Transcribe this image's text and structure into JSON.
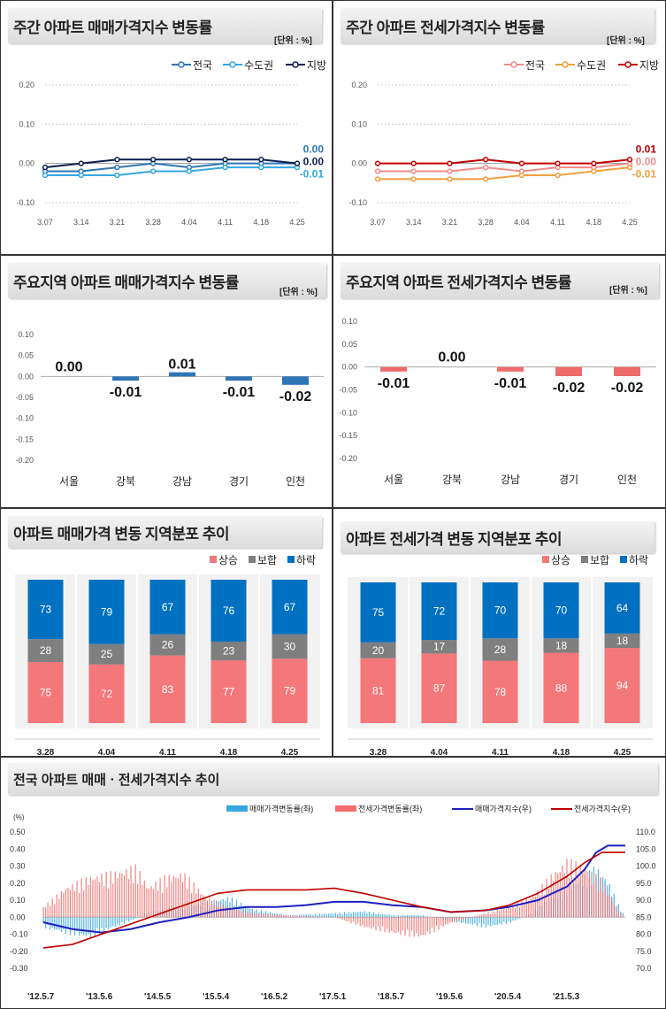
{
  "panels": {
    "weekly_sale": {
      "title": "주간 아파트 매매가격지수 변동률",
      "unit": "[단위 : %]"
    },
    "weekly_jeonse": {
      "title": "주간 아파트 전세가격지수 변동률",
      "unit": "[단위 : %]"
    },
    "region_sale": {
      "title": "주요지역 아파트 매매가격지수 변동률",
      "unit": "[단위 : %]"
    },
    "region_jeonse": {
      "title": "주요지역 아파트 전세가격지수 변동률",
      "unit": "[단위 : %]"
    },
    "dist_sale": {
      "title": "아파트 매매가격 변동 지역분포 추이"
    },
    "dist_jeonse": {
      "title": "아파트 전세가격 변동 지역분포 추이"
    },
    "long_term": {
      "title": "전국 아파트 매매ㆍ전세가격지수 추이"
    }
  },
  "chart_data": [
    {
      "id": "weekly_sale",
      "type": "line",
      "categories": [
        "3.07",
        "3.14",
        "3.21",
        "3.28",
        "4.04",
        "4.11",
        "4.18",
        "4.25"
      ],
      "ylim": [
        -0.1,
        0.2
      ],
      "yticks": [
        "0.20",
        "0.10",
        "0.00",
        "-0.10"
      ],
      "series": [
        {
          "name": "전국",
          "color": "#2e75b6",
          "values": [
            -0.02,
            -0.02,
            -0.01,
            0.0,
            -0.01,
            0.0,
            0.0,
            0.0
          ],
          "end_label": "0.00"
        },
        {
          "name": "수도권",
          "color": "#35a8e0",
          "values": [
            -0.03,
            -0.03,
            -0.03,
            -0.02,
            -0.02,
            -0.01,
            -0.01,
            -0.01
          ],
          "end_label": "-0.01"
        },
        {
          "name": "지방",
          "color": "#0b1d51",
          "values": [
            -0.01,
            0.0,
            0.01,
            0.01,
            0.01,
            0.01,
            0.01,
            0.0
          ],
          "end_label": "0.00"
        }
      ]
    },
    {
      "id": "weekly_jeonse",
      "type": "line",
      "categories": [
        "3.07",
        "3.14",
        "3.21",
        "3.28",
        "4.04",
        "4.11",
        "4.18",
        "4.25"
      ],
      "ylim": [
        -0.1,
        0.2
      ],
      "yticks": [
        "0.20",
        "0.10",
        "0.00",
        "-0.10"
      ],
      "series": [
        {
          "name": "전국",
          "color": "#f28b8b",
          "values": [
            -0.02,
            -0.02,
            -0.02,
            -0.01,
            -0.02,
            -0.01,
            -0.01,
            0.0
          ],
          "end_label": "0.00"
        },
        {
          "name": "수도권",
          "color": "#f0a040",
          "values": [
            -0.04,
            -0.04,
            -0.04,
            -0.04,
            -0.03,
            -0.03,
            -0.02,
            -0.01
          ],
          "end_label": "-0.01"
        },
        {
          "name": "지방",
          "color": "#c00000",
          "values": [
            0.0,
            0.0,
            0.0,
            0.01,
            0.0,
            0.0,
            0.0,
            0.01
          ],
          "end_label": "0.01"
        }
      ]
    },
    {
      "id": "region_sale",
      "type": "bar",
      "categories": [
        "서울",
        "강북",
        "강남",
        "경기",
        "인천"
      ],
      "values": [
        0.0,
        -0.01,
        0.01,
        -0.01,
        -0.02
      ],
      "labels": [
        "0.00",
        "-0.01",
        "0.01",
        "-0.01",
        "-0.02"
      ],
      "ylim": [
        -0.2,
        0.1
      ],
      "yticks": [
        "0.10",
        "0.05",
        "0.00",
        "-0.05",
        "-0.10",
        "-0.15",
        "-0.20"
      ],
      "color": "#2e75b6"
    },
    {
      "id": "region_jeonse",
      "type": "bar",
      "categories": [
        "서울",
        "강북",
        "강남",
        "경기",
        "인천"
      ],
      "values": [
        -0.01,
        0.0,
        -0.01,
        -0.02,
        -0.02
      ],
      "labels": [
        "-0.01",
        "0.00",
        "-0.01",
        "-0.02",
        "-0.02"
      ],
      "ylim": [
        -0.2,
        0.1
      ],
      "yticks": [
        "0.10",
        "0.05",
        "0.00",
        "-0.05",
        "-0.10",
        "-0.15",
        "-0.20"
      ],
      "color": "#ef6b6b"
    },
    {
      "id": "dist_sale",
      "type": "bar",
      "stacked": true,
      "categories": [
        "3.28",
        "4.04",
        "4.11",
        "4.18",
        "4.25"
      ],
      "series": [
        {
          "name": "상승",
          "color": "#f4777a",
          "values": [
            75,
            72,
            83,
            77,
            79
          ]
        },
        {
          "name": "보합",
          "color": "#7f7f7f",
          "values": [
            28,
            25,
            26,
            23,
            30
          ]
        },
        {
          "name": "하락",
          "color": "#0070c0",
          "values": [
            73,
            79,
            67,
            76,
            67
          ]
        }
      ]
    },
    {
      "id": "dist_jeonse",
      "type": "bar",
      "stacked": true,
      "categories": [
        "3.28",
        "4.04",
        "4.11",
        "4.18",
        "4.25"
      ],
      "series": [
        {
          "name": "상승",
          "color": "#f4777a",
          "values": [
            81,
            87,
            78,
            88,
            94
          ]
        },
        {
          "name": "보합",
          "color": "#7f7f7f",
          "values": [
            20,
            17,
            28,
            18,
            18
          ]
        },
        {
          "name": "하락",
          "color": "#0070c0",
          "values": [
            75,
            72,
            70,
            70,
            64
          ]
        }
      ]
    },
    {
      "id": "long_term",
      "type": "line",
      "y_left_label": "(%)",
      "ylim_left": [
        -0.3,
        0.5
      ],
      "ylim_right": [
        70,
        110
      ],
      "yticks_left": [
        "0.50",
        "0.40",
        "0.30",
        "0.20",
        "0.10",
        "0.00",
        "-0.10",
        "-0.20",
        "-0.30"
      ],
      "yticks_right": [
        "110.0",
        "105.0",
        "100.0",
        "95.0",
        "90.0",
        "85.0",
        "80.0",
        "75.0",
        "70.0"
      ],
      "x_ticks": [
        "'12.5.7",
        "'13.5.6",
        "'14.5.5",
        "'15.5.4",
        "'16.5.2",
        "'17.5.1",
        "'18.5.7",
        "'19.5.6",
        "'20.5.4",
        "'21.5.3"
      ],
      "series": [
        {
          "name": "매매가격변동률(좌)",
          "kind": "bar",
          "color": "#35a8e0",
          "anchors": [
            [
              0,
              -0.05
            ],
            [
              4,
              -0.08
            ],
            [
              8,
              -0.1
            ],
            [
              12,
              -0.05
            ],
            [
              14,
              -0.03
            ],
            [
              18,
              0.02
            ],
            [
              22,
              0.05
            ],
            [
              28,
              0.07
            ],
            [
              32,
              0.1
            ],
            [
              36,
              0.04
            ],
            [
              42,
              0.01
            ],
            [
              50,
              0.02
            ],
            [
              55,
              0.03
            ],
            [
              60,
              0.01
            ],
            [
              65,
              0.01
            ],
            [
              70,
              -0.02
            ],
            [
              76,
              -0.05
            ],
            [
              80,
              -0.03
            ],
            [
              84,
              0.02
            ],
            [
              87,
              0.1
            ],
            [
              90,
              0.15
            ],
            [
              93,
              0.2
            ],
            [
              95,
              0.25
            ],
            [
              97,
              0.18
            ],
            [
              99,
              0.05
            ],
            [
              100,
              0.0
            ]
          ]
        },
        {
          "name": "전세가격변동률(좌)",
          "kind": "bar",
          "color": "#f26d6d",
          "anchors": [
            [
              0,
              0.05
            ],
            [
              4,
              0.15
            ],
            [
              8,
              0.2
            ],
            [
              12,
              0.22
            ],
            [
              16,
              0.25
            ],
            [
              18,
              0.15
            ],
            [
              21,
              0.2
            ],
            [
              24,
              0.22
            ],
            [
              28,
              0.1
            ],
            [
              32,
              0.05
            ],
            [
              36,
              0.02
            ],
            [
              42,
              0.01
            ],
            [
              50,
              0.0
            ],
            [
              55,
              -0.05
            ],
            [
              60,
              -0.08
            ],
            [
              65,
              -0.1
            ],
            [
              70,
              -0.03
            ],
            [
              76,
              0.02
            ],
            [
              80,
              0.05
            ],
            [
              84,
              0.1
            ],
            [
              87,
              0.2
            ],
            [
              90,
              0.28
            ],
            [
              93,
              0.25
            ],
            [
              96,
              0.18
            ],
            [
              99,
              0.02
            ],
            [
              100,
              0.0
            ]
          ]
        },
        {
          "name": "매매가격지수(우)",
          "kind": "line",
          "color": "#1f1fbf",
          "anchors": [
            [
              0,
              83.5
            ],
            [
              5,
              81.5
            ],
            [
              10,
              80.5
            ],
            [
              15,
              81.5
            ],
            [
              20,
              83.5
            ],
            [
              25,
              85
            ],
            [
              30,
              87
            ],
            [
              35,
              88
            ],
            [
              40,
              88
            ],
            [
              45,
              88.5
            ],
            [
              50,
              89.5
            ],
            [
              55,
              89.5
            ],
            [
              60,
              88.5
            ],
            [
              65,
              88
            ],
            [
              70,
              86.5
            ],
            [
              76,
              87
            ],
            [
              80,
              88
            ],
            [
              85,
              90
            ],
            [
              90,
              94
            ],
            [
              93,
              99
            ],
            [
              95,
              104
            ],
            [
              97,
              106
            ],
            [
              100,
              106
            ]
          ]
        },
        {
          "name": "전세가격지수(우)",
          "kind": "line",
          "color": "#c00000",
          "anchors": [
            [
              0,
              76
            ],
            [
              5,
              77
            ],
            [
              10,
              80
            ],
            [
              15,
              83
            ],
            [
              20,
              86
            ],
            [
              25,
              89
            ],
            [
              30,
              92
            ],
            [
              35,
              93
            ],
            [
              40,
              93
            ],
            [
              45,
              93
            ],
            [
              50,
              93.5
            ],
            [
              55,
              92
            ],
            [
              60,
              90
            ],
            [
              65,
              88
            ],
            [
              70,
              86.5
            ],
            [
              76,
              87
            ],
            [
              80,
              88.5
            ],
            [
              85,
              92
            ],
            [
              90,
              97
            ],
            [
              93,
              101
            ],
            [
              96,
              104
            ],
            [
              100,
              104
            ]
          ]
        }
      ]
    }
  ]
}
